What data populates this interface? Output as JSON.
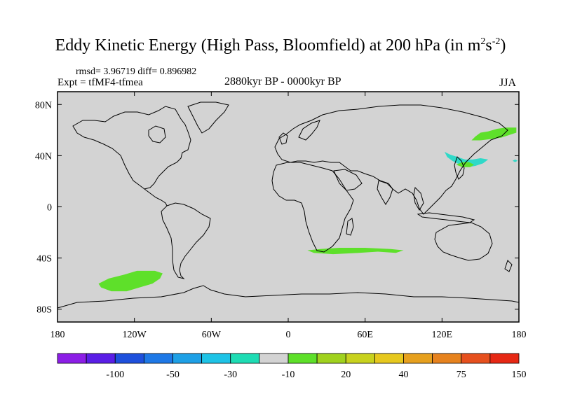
{
  "title": {
    "main": "Eddy Kinetic Energy (High Pass, Bloomfield) at 200 hPa (in m",
    "sup1": "2",
    "mid": "s",
    "sup2": "-2",
    "end": ")"
  },
  "header": {
    "stats": "rmsd= 3.96719 diff= 0.896982",
    "expt": "Expt = tfMF4-tfmea",
    "period": "2880kyr BP - 0000kyr BP",
    "season": "JJA"
  },
  "map": {
    "background_color": "#d3d3d3",
    "lon_ticks": [
      {
        "lon": -180,
        "label": "180"
      },
      {
        "lon": -120,
        "label": "120W"
      },
      {
        "lon": -60,
        "label": "60W"
      },
      {
        "lon": 0,
        "label": "0"
      },
      {
        "lon": 60,
        "label": "60E"
      },
      {
        "lon": 120,
        "label": "120E"
      },
      {
        "lon": 180,
        "label": "180"
      }
    ],
    "lat_ticks": [
      {
        "lat": 80,
        "label": "80N"
      },
      {
        "lat": 40,
        "label": "40N"
      },
      {
        "lat": 0,
        "label": "0"
      },
      {
        "lat": -40,
        "label": "40S"
      },
      {
        "lat": -80,
        "label": "80S"
      }
    ],
    "anomalies": [
      {
        "name": "anomaly-north-pacific",
        "color": "#5ee02a",
        "points": [
          [
            143,
            52
          ],
          [
            146,
            55
          ],
          [
            150,
            58
          ],
          [
            156,
            59
          ],
          [
            163,
            61
          ],
          [
            170,
            62
          ],
          [
            178,
            62
          ],
          [
            178,
            58
          ],
          [
            172,
            56
          ],
          [
            166,
            54
          ],
          [
            158,
            53
          ],
          [
            150,
            52
          ]
        ]
      },
      {
        "name": "anomaly-japan-east",
        "color": "#2fd9c8",
        "points": [
          [
            122,
            43
          ],
          [
            126,
            41
          ],
          [
            132,
            39
          ],
          [
            138,
            37
          ],
          [
            144,
            37
          ],
          [
            150,
            38
          ],
          [
            156,
            37
          ],
          [
            152,
            34
          ],
          [
            146,
            32
          ],
          [
            140,
            31
          ],
          [
            134,
            33
          ],
          [
            128,
            36
          ],
          [
            124,
            39
          ]
        ]
      },
      {
        "name": "anomaly-japan-core",
        "color": "#5ee02a",
        "points": [
          [
            131,
            33
          ],
          [
            136,
            35
          ],
          [
            141,
            35
          ],
          [
            145,
            33
          ],
          [
            142,
            31
          ],
          [
            136,
            31
          ]
        ]
      },
      {
        "name": "anomaly-central-pacific-dot",
        "color": "#2fd9c8",
        "points": [
          [
            175,
            36
          ],
          [
            177,
            37
          ],
          [
            179,
            36
          ],
          [
            177,
            35
          ]
        ]
      },
      {
        "name": "anomaly-south-indian-ocean",
        "color": "#5ee02a",
        "points": [
          [
            15,
            -34
          ],
          [
            25,
            -33
          ],
          [
            40,
            -32
          ],
          [
            60,
            -32
          ],
          [
            80,
            -33
          ],
          [
            90,
            -34
          ],
          [
            84,
            -36
          ],
          [
            70,
            -35
          ],
          [
            55,
            -36
          ],
          [
            35,
            -37
          ],
          [
            20,
            -36
          ]
        ]
      },
      {
        "name": "anomaly-south-pacific",
        "color": "#5ee02a",
        "points": [
          [
            -148,
            -60
          ],
          [
            -140,
            -56
          ],
          [
            -128,
            -53
          ],
          [
            -118,
            -50
          ],
          [
            -104,
            -50
          ],
          [
            -98,
            -52
          ],
          [
            -100,
            -56
          ],
          [
            -106,
            -60
          ],
          [
            -116,
            -63
          ],
          [
            -126,
            -66
          ],
          [
            -138,
            -66
          ],
          [
            -146,
            -63
          ]
        ]
      }
    ]
  },
  "colorbar": {
    "colors": [
      "#8c1ee6",
      "#5a1ee6",
      "#1e50dc",
      "#1e78e6",
      "#1ea0e6",
      "#1ec3e6",
      "#1edcb4",
      "#d3d3d3",
      "#5ee02a",
      "#a0d21e",
      "#c8d21e",
      "#e6c81e",
      "#e6a01e",
      "#e6821e",
      "#e6501e",
      "#e62814"
    ],
    "labels": [
      {
        "index": 2,
        "label": "-100"
      },
      {
        "index": 4,
        "label": "-50"
      },
      {
        "index": 6,
        "label": "-30"
      },
      {
        "index": 8,
        "label": "-10"
      },
      {
        "index": 10,
        "label": "20"
      },
      {
        "index": 12,
        "label": "40"
      },
      {
        "index": 14,
        "label": "75"
      },
      {
        "index": 16,
        "label": "150"
      }
    ]
  }
}
